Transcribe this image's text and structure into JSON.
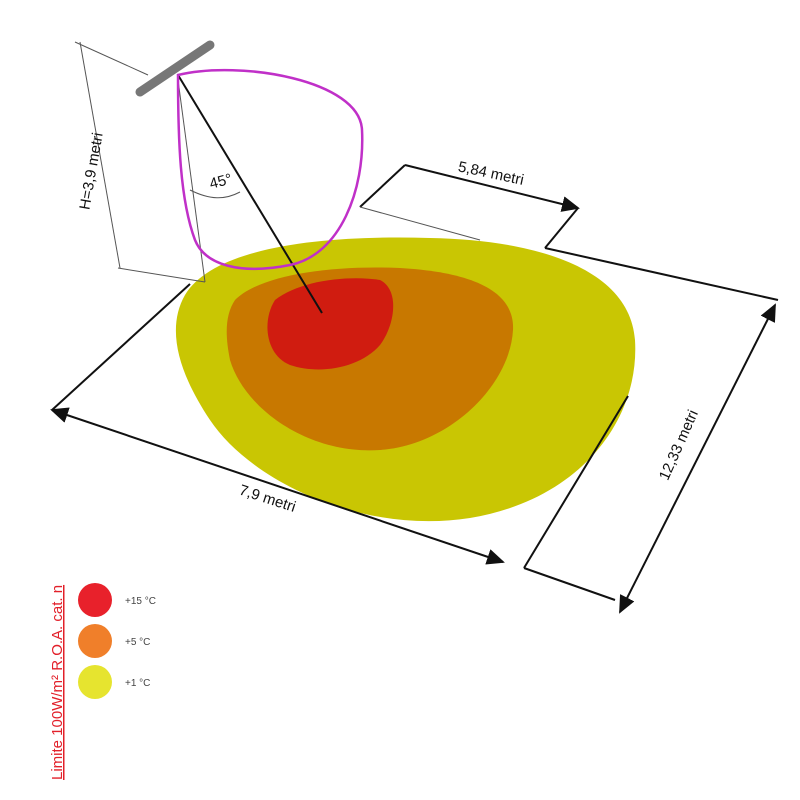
{
  "dimensions": {
    "depth": "5,84 metri",
    "height": "H=3,9 metri",
    "angle": "45°",
    "length": "12,33 metri",
    "width": "7,9 metri"
  },
  "legend": [
    {
      "label": "+15 °C",
      "color": "#e8212b"
    },
    {
      "label": "+5 °C",
      "color": "#f07f2a"
    },
    {
      "label": "+1 °C",
      "color": "#e6e42f"
    }
  ],
  "note": "Limite 100W/m² R.O.A. cat. n"
}
